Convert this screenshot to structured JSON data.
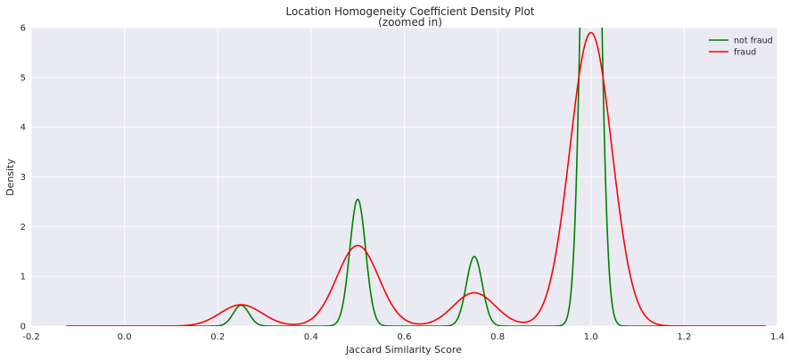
{
  "chart_data": {
    "type": "line",
    "title": "Location Homogeneity Coefficient Density Plot",
    "subtitle": "(zoomed in)",
    "xlabel": "Jaccard Similarity Score",
    "ylabel": "Density",
    "xlim": [
      -0.2,
      1.4
    ],
    "ylim": [
      0,
      6
    ],
    "xticks": [
      -0.2,
      0.0,
      0.2,
      0.4,
      0.6,
      0.8,
      1.0,
      1.2,
      1.4
    ],
    "xtick_labels": [
      "-0.2",
      "0.0",
      "0.2",
      "0.4",
      "0.6",
      "0.8",
      "1.0",
      "1.2",
      "1.4"
    ],
    "yticks": [
      0,
      1,
      2,
      3,
      4,
      5,
      6
    ],
    "ytick_labels": [
      "0",
      "1",
      "2",
      "3",
      "4",
      "5",
      "6"
    ],
    "grid": true,
    "legend_position": "top-right",
    "x_range": [
      -0.125,
      1.375
    ],
    "series": [
      {
        "name": "not fraud",
        "color": "#008000",
        "components": [
          {
            "mu": 0.25,
            "sigma": 0.017,
            "peak": 0.42
          },
          {
            "mu": 0.5,
            "sigma": 0.017,
            "peak": 2.55
          },
          {
            "mu": 0.75,
            "sigma": 0.017,
            "peak": 1.4
          },
          {
            "mu": 1.0,
            "sigma": 0.017,
            "peak": 16.0
          }
        ]
      },
      {
        "name": "fraud",
        "color": "#ff0000",
        "components": [
          {
            "mu": 0.25,
            "sigma": 0.045,
            "peak": 0.43
          },
          {
            "mu": 0.5,
            "sigma": 0.045,
            "peak": 1.62
          },
          {
            "mu": 0.75,
            "sigma": 0.045,
            "peak": 0.67
          },
          {
            "mu": 1.0,
            "sigma": 0.045,
            "peak": 5.9
          }
        ]
      }
    ]
  }
}
